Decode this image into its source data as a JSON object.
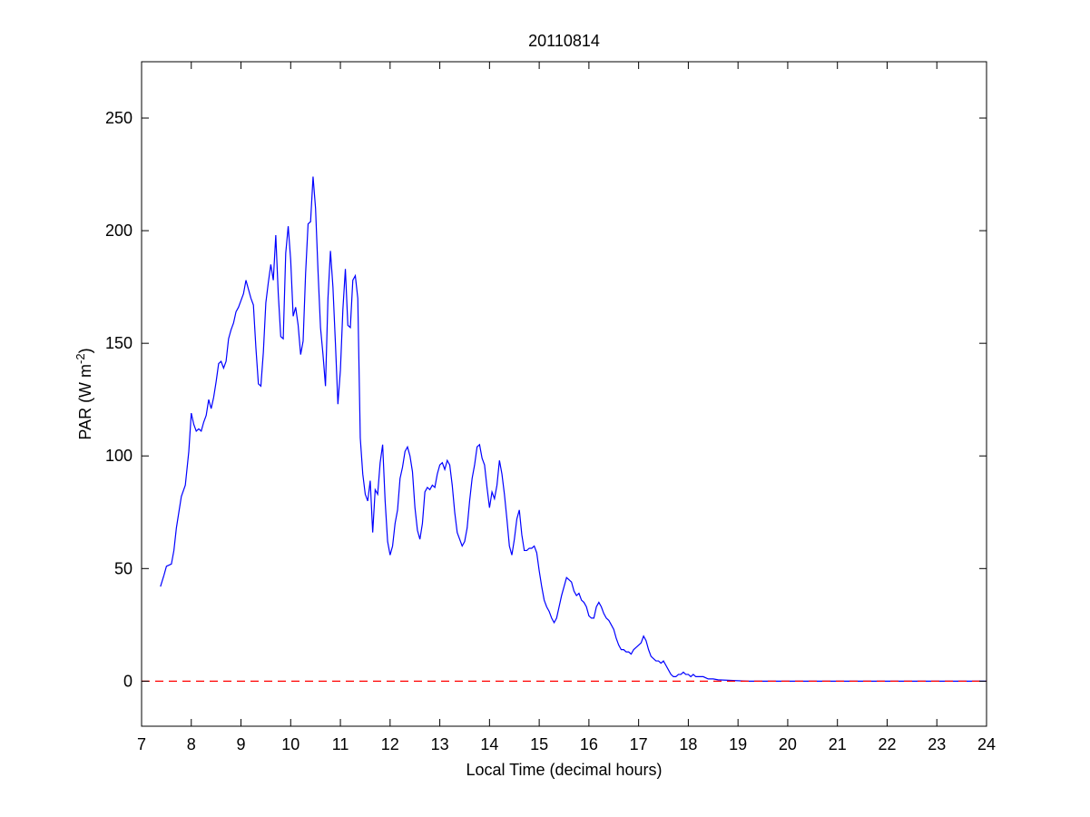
{
  "figure": {
    "background": "#ffffff"
  },
  "chart_data": {
    "type": "line",
    "title": "20110814",
    "xlabel": "Local Time (decimal hours)",
    "ylabel": {
      "prefix": "PAR (W m",
      "superscript": "-2",
      "suffix": ")"
    },
    "xlim": [
      7,
      24
    ],
    "ylim": [
      -20,
      275
    ],
    "xticks": [
      7,
      8,
      9,
      10,
      11,
      12,
      13,
      14,
      15,
      16,
      17,
      18,
      19,
      20,
      21,
      22,
      23,
      24
    ],
    "yticks": [
      0,
      50,
      100,
      150,
      200,
      250
    ],
    "grid": false,
    "legend": "none",
    "series": [
      {
        "color": "#0000ff",
        "style": "solid",
        "points": [
          [
            7.38,
            42
          ],
          [
            7.45,
            47
          ],
          [
            7.5,
            51
          ],
          [
            7.6,
            52
          ],
          [
            7.65,
            58
          ],
          [
            7.7,
            68
          ],
          [
            7.75,
            75
          ],
          [
            7.8,
            82
          ],
          [
            7.88,
            87
          ],
          [
            7.95,
            102
          ],
          [
            8.0,
            119
          ],
          [
            8.05,
            114
          ],
          [
            8.1,
            111
          ],
          [
            8.15,
            112
          ],
          [
            8.2,
            111
          ],
          [
            8.25,
            115
          ],
          [
            8.3,
            118
          ],
          [
            8.35,
            125
          ],
          [
            8.4,
            121
          ],
          [
            8.45,
            126
          ],
          [
            8.5,
            133
          ],
          [
            8.55,
            141
          ],
          [
            8.6,
            142
          ],
          [
            8.65,
            139
          ],
          [
            8.7,
            142
          ],
          [
            8.75,
            152
          ],
          [
            8.8,
            156
          ],
          [
            8.85,
            159
          ],
          [
            8.9,
            164
          ],
          [
            8.95,
            166
          ],
          [
            9.0,
            169
          ],
          [
            9.05,
            172
          ],
          [
            9.1,
            178
          ],
          [
            9.15,
            174
          ],
          [
            9.2,
            170
          ],
          [
            9.25,
            167
          ],
          [
            9.3,
            148
          ],
          [
            9.35,
            132
          ],
          [
            9.4,
            131
          ],
          [
            9.45,
            146
          ],
          [
            9.5,
            168
          ],
          [
            9.55,
            177
          ],
          [
            9.6,
            185
          ],
          [
            9.65,
            178
          ],
          [
            9.7,
            198
          ],
          [
            9.75,
            172
          ],
          [
            9.8,
            153
          ],
          [
            9.85,
            152
          ],
          [
            9.9,
            190
          ],
          [
            9.95,
            202
          ],
          [
            10.0,
            187
          ],
          [
            10.05,
            162
          ],
          [
            10.1,
            166
          ],
          [
            10.15,
            158
          ],
          [
            10.2,
            145
          ],
          [
            10.25,
            151
          ],
          [
            10.3,
            181
          ],
          [
            10.35,
            203
          ],
          [
            10.4,
            204
          ],
          [
            10.45,
            224
          ],
          [
            10.5,
            210
          ],
          [
            10.55,
            182
          ],
          [
            10.6,
            157
          ],
          [
            10.65,
            145
          ],
          [
            10.7,
            131
          ],
          [
            10.75,
            170
          ],
          [
            10.8,
            191
          ],
          [
            10.85,
            175
          ],
          [
            10.9,
            150
          ],
          [
            10.95,
            123
          ],
          [
            11.0,
            138
          ],
          [
            11.05,
            165
          ],
          [
            11.1,
            183
          ],
          [
            11.15,
            158
          ],
          [
            11.2,
            157
          ],
          [
            11.25,
            178
          ],
          [
            11.3,
            180
          ],
          [
            11.35,
            170
          ],
          [
            11.4,
            108
          ],
          [
            11.45,
            92
          ],
          [
            11.5,
            83
          ],
          [
            11.55,
            80
          ],
          [
            11.6,
            89
          ],
          [
            11.65,
            66
          ],
          [
            11.7,
            85
          ],
          [
            11.75,
            83
          ],
          [
            11.8,
            97
          ],
          [
            11.85,
            105
          ],
          [
            11.9,
            80
          ],
          [
            11.95,
            62
          ],
          [
            12.0,
            56
          ],
          [
            12.05,
            60
          ],
          [
            12.1,
            70
          ],
          [
            12.15,
            76
          ],
          [
            12.2,
            90
          ],
          [
            12.25,
            95
          ],
          [
            12.3,
            102
          ],
          [
            12.35,
            104
          ],
          [
            12.4,
            100
          ],
          [
            12.45,
            93
          ],
          [
            12.5,
            77
          ],
          [
            12.55,
            67
          ],
          [
            12.6,
            63
          ],
          [
            12.65,
            70
          ],
          [
            12.7,
            84
          ],
          [
            12.75,
            86
          ],
          [
            12.8,
            85
          ],
          [
            12.85,
            87
          ],
          [
            12.9,
            86
          ],
          [
            12.95,
            92
          ],
          [
            13.0,
            96
          ],
          [
            13.05,
            97
          ],
          [
            13.1,
            94
          ],
          [
            13.15,
            98
          ],
          [
            13.2,
            96
          ],
          [
            13.25,
            87
          ],
          [
            13.3,
            75
          ],
          [
            13.35,
            66
          ],
          [
            13.4,
            63
          ],
          [
            13.45,
            60
          ],
          [
            13.5,
            62
          ],
          [
            13.55,
            68
          ],
          [
            13.6,
            80
          ],
          [
            13.65,
            90
          ],
          [
            13.7,
            96
          ],
          [
            13.75,
            104
          ],
          [
            13.8,
            105
          ],
          [
            13.85,
            99
          ],
          [
            13.9,
            96
          ],
          [
            13.95,
            86
          ],
          [
            14.0,
            77
          ],
          [
            14.05,
            84
          ],
          [
            14.1,
            81
          ],
          [
            14.15,
            87
          ],
          [
            14.2,
            98
          ],
          [
            14.25,
            92
          ],
          [
            14.3,
            83
          ],
          [
            14.35,
            72
          ],
          [
            14.4,
            60
          ],
          [
            14.45,
            56
          ],
          [
            14.5,
            63
          ],
          [
            14.55,
            72
          ],
          [
            14.6,
            76
          ],
          [
            14.65,
            65
          ],
          [
            14.7,
            58
          ],
          [
            14.75,
            58
          ],
          [
            14.8,
            59
          ],
          [
            14.85,
            59
          ],
          [
            14.9,
            60
          ],
          [
            14.95,
            57
          ],
          [
            15.0,
            49
          ],
          [
            15.05,
            42
          ],
          [
            15.1,
            36
          ],
          [
            15.15,
            33
          ],
          [
            15.2,
            31
          ],
          [
            15.25,
            28
          ],
          [
            15.3,
            26
          ],
          [
            15.35,
            28
          ],
          [
            15.4,
            33
          ],
          [
            15.45,
            38
          ],
          [
            15.5,
            42
          ],
          [
            15.55,
            46
          ],
          [
            15.6,
            45
          ],
          [
            15.65,
            44
          ],
          [
            15.7,
            40
          ],
          [
            15.75,
            38
          ],
          [
            15.8,
            39
          ],
          [
            15.85,
            36
          ],
          [
            15.9,
            35
          ],
          [
            15.95,
            33
          ],
          [
            16.0,
            29
          ],
          [
            16.05,
            28
          ],
          [
            16.1,
            28
          ],
          [
            16.15,
            33
          ],
          [
            16.2,
            35
          ],
          [
            16.25,
            33
          ],
          [
            16.3,
            30
          ],
          [
            16.35,
            28
          ],
          [
            16.4,
            27
          ],
          [
            16.45,
            25
          ],
          [
            16.5,
            23
          ],
          [
            16.55,
            19
          ],
          [
            16.6,
            16
          ],
          [
            16.65,
            14
          ],
          [
            16.7,
            14
          ],
          [
            16.75,
            13
          ],
          [
            16.8,
            13
          ],
          [
            16.85,
            12
          ],
          [
            16.9,
            14
          ],
          [
            16.95,
            15
          ],
          [
            17.0,
            16
          ],
          [
            17.05,
            17
          ],
          [
            17.1,
            20
          ],
          [
            17.15,
            18
          ],
          [
            17.2,
            14
          ],
          [
            17.25,
            11
          ],
          [
            17.3,
            10
          ],
          [
            17.35,
            9
          ],
          [
            17.4,
            9
          ],
          [
            17.45,
            8
          ],
          [
            17.5,
            9
          ],
          [
            17.55,
            7
          ],
          [
            17.6,
            5
          ],
          [
            17.65,
            3
          ],
          [
            17.7,
            2
          ],
          [
            17.75,
            2
          ],
          [
            17.8,
            3
          ],
          [
            17.85,
            3
          ],
          [
            17.9,
            4
          ],
          [
            17.95,
            3
          ],
          [
            18.0,
            3
          ],
          [
            18.05,
            2
          ],
          [
            18.1,
            3
          ],
          [
            18.15,
            2
          ],
          [
            18.2,
            2
          ],
          [
            18.3,
            2
          ],
          [
            18.4,
            1
          ],
          [
            18.5,
            1
          ],
          [
            18.6,
            0.6
          ],
          [
            18.7,
            0.5
          ],
          [
            18.8,
            0.4
          ],
          [
            18.9,
            0.3
          ],
          [
            19.0,
            0.2
          ],
          [
            19.1,
            0.1
          ],
          [
            19.2,
            0
          ],
          [
            19.5,
            0
          ],
          [
            20,
            0
          ],
          [
            21,
            0
          ],
          [
            22,
            0
          ],
          [
            23,
            0
          ],
          [
            24,
            0
          ]
        ]
      },
      {
        "color": "#ff0000",
        "style": "dashed",
        "points": [
          [
            7,
            0
          ],
          [
            24,
            0
          ]
        ]
      }
    ]
  }
}
